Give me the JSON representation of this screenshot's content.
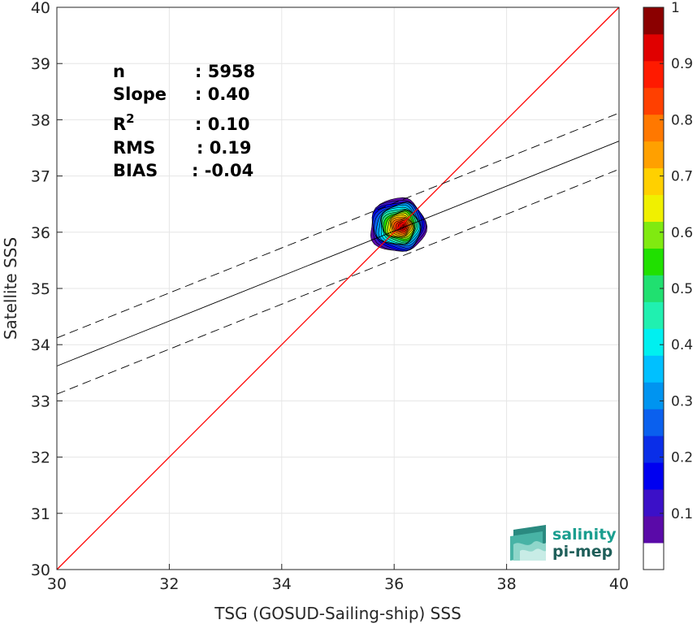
{
  "chart_data": {
    "type": "heatmap",
    "xlabel": "TSG (GOSUD-Sailing-ship) SSS",
    "ylabel": "Satellite SSS",
    "xlim": [
      30,
      40
    ],
    "ylim": [
      30,
      40
    ],
    "xticks": [
      "30",
      "32",
      "34",
      "36",
      "38",
      "40"
    ],
    "yticks": [
      "30",
      "31",
      "32",
      "33",
      "34",
      "35",
      "36",
      "37",
      "38",
      "39",
      "40"
    ],
    "grid": true,
    "density_center": [
      36.15,
      36.1
    ],
    "density_extent": {
      "x": [
        35.55,
        36.55
      ],
      "y": [
        35.65,
        36.6
      ]
    },
    "identity_line": {
      "from": [
        30,
        30
      ],
      "to": [
        40,
        40
      ],
      "color": "#ff0000"
    },
    "regression_line": {
      "slope": 0.4,
      "intercept_at_x30": 33.62
    },
    "confidence_offset": 0.5,
    "colorbar": {
      "ticks": [
        "0.1",
        "0.2",
        "0.3",
        "0.4",
        "0.5",
        "0.6",
        "0.7",
        "0.8",
        "0.9",
        "1"
      ],
      "tick_values": [
        0.1,
        0.2,
        0.3,
        0.4,
        0.5,
        0.6,
        0.7,
        0.8,
        0.9,
        1.0
      ],
      "range": [
        0,
        1
      ],
      "levels": [
        "#ffffff",
        "#5a0aa8",
        "#3b10c8",
        "#0000f0",
        "#0a2ee8",
        "#0a60ee",
        "#0094f0",
        "#00c0ff",
        "#00f0f0",
        "#20f0b0",
        "#20e070",
        "#20e000",
        "#80ea10",
        "#f0f000",
        "#ffd000",
        "#ffa000",
        "#ff7800",
        "#ff4000",
        "#ff1a00",
        "#e00000",
        "#8b0000"
      ]
    },
    "stats": [
      {
        "label": "n",
        "value": ": 5958"
      },
      {
        "label": "Slope",
        "value": ": 0.40"
      },
      {
        "label": "R",
        "sup": "2",
        "value": ": 0.10"
      },
      {
        "label": "RMS",
        "value": ": 0.19"
      },
      {
        "label": "BIAS",
        "value": ": -0.04"
      }
    ]
  },
  "logo": {
    "line1": "salinity",
    "line2": "pi-mep"
  }
}
